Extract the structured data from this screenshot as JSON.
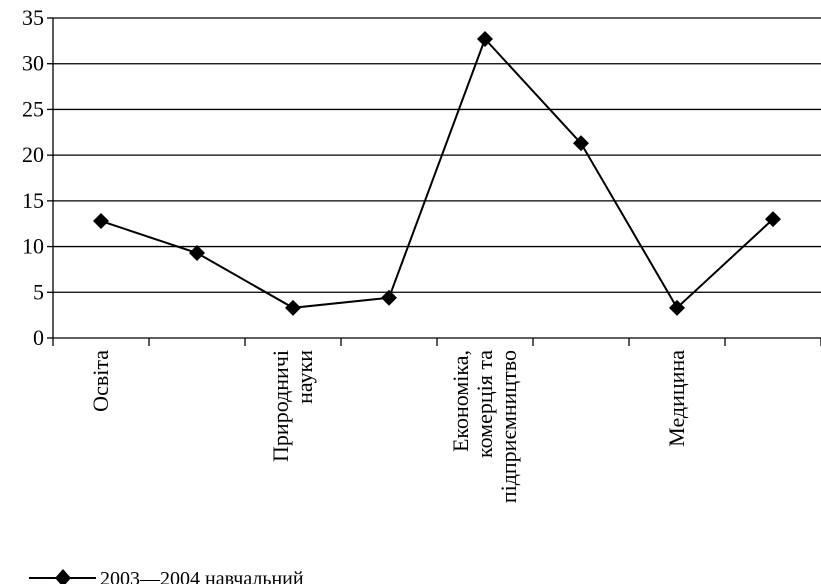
{
  "chart_data": {
    "type": "line",
    "title": "",
    "xlabel": "",
    "ylabel": "",
    "ylim": [
      0,
      35
    ],
    "yticks": [
      0,
      5,
      10,
      15,
      20,
      25,
      30,
      35
    ],
    "grid": "horizontal",
    "legend_position": "bottom-left",
    "categories": [
      "Освіта",
      "",
      "Природничі науки",
      "",
      "Економіка, комерція та підприємництво",
      "",
      "Медицина",
      ""
    ],
    "category_label_lines": [
      [
        "Освіта"
      ],
      [],
      [
        "Природничі",
        "науки"
      ],
      [],
      [
        "Економіка,",
        "комерція та",
        "підприємництво"
      ],
      [],
      [
        "Медицина"
      ],
      []
    ],
    "series": [
      {
        "name": "2003—2004 навчальний",
        "color": "#000000",
        "marker": "diamond",
        "values": [
          12.8,
          9.3,
          3.3,
          4.4,
          32.7,
          21.3,
          3.3,
          13.0
        ]
      }
    ]
  }
}
